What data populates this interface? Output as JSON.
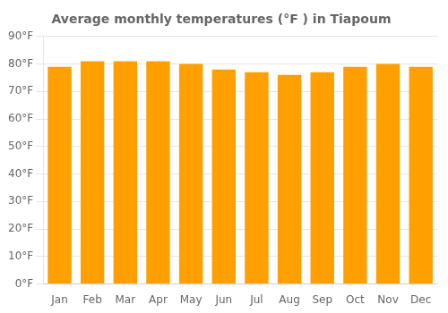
{
  "chart_data": {
    "type": "bar",
    "title": "Average monthly temperatures (°F ) in Tiapoum",
    "categories": [
      "Jan",
      "Feb",
      "Mar",
      "Apr",
      "May",
      "Jun",
      "Jul",
      "Aug",
      "Sep",
      "Oct",
      "Nov",
      "Dec"
    ],
    "values": [
      79,
      81,
      81,
      81,
      80,
      78,
      77,
      76,
      77,
      79,
      80,
      79
    ],
    "color": "#FFA000",
    "ylim": [
      0,
      90
    ],
    "yticks": [
      {
        "value": 0,
        "label": "0°F"
      },
      {
        "value": 10,
        "label": "10°F"
      },
      {
        "value": 20,
        "label": "20°F"
      },
      {
        "value": 30,
        "label": "30°F"
      },
      {
        "value": 40,
        "label": "40°F"
      },
      {
        "value": 50,
        "label": "50°F"
      },
      {
        "value": 60,
        "label": "60°F"
      },
      {
        "value": 70,
        "label": "70°F"
      },
      {
        "value": 80,
        "label": "80°F"
      },
      {
        "value": 90,
        "label": "90°F"
      }
    ],
    "grid": true
  }
}
